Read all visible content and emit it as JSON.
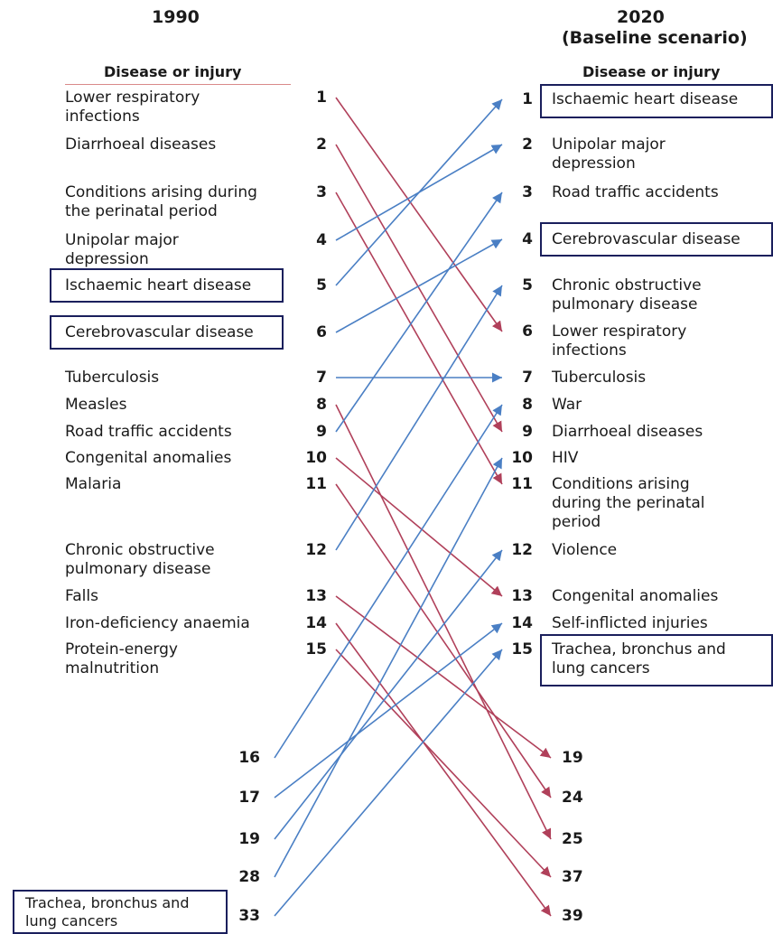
{
  "left": {
    "year": "1990",
    "header": "Disease or injury",
    "items": [
      {
        "rank": "1",
        "label": "Lower respiratory\ninfections"
      },
      {
        "rank": "2",
        "label": "Diarrhoeal diseases"
      },
      {
        "rank": "3",
        "label": "Conditions arising during\nthe perinatal period"
      },
      {
        "rank": "4",
        "label": "Unipolar major\ndepression"
      },
      {
        "rank": "5",
        "label": "Ischaemic heart disease",
        "boxed": true
      },
      {
        "rank": "6",
        "label": "Cerebrovascular disease",
        "boxed": true
      },
      {
        "rank": "7",
        "label": "Tuberculosis"
      },
      {
        "rank": "8",
        "label": "Measles"
      },
      {
        "rank": "9",
        "label": "Road traffic accidents"
      },
      {
        "rank": "10",
        "label": "Congenital anomalies"
      },
      {
        "rank": "11",
        "label": "Malaria"
      },
      {
        "rank": "12",
        "label": "Chronic obstructive\npulmonary disease"
      },
      {
        "rank": "13",
        "label": "Falls"
      },
      {
        "rank": "14",
        "label": "Iron-deficiency anaemia"
      },
      {
        "rank": "15",
        "label": "Protein-energy\nmalnutrition"
      }
    ],
    "lower_ranks": [
      "16",
      "17",
      "19",
      "28",
      "33"
    ],
    "lower_label": "Trachea, bronchus and\nlung cancers"
  },
  "right": {
    "year": "2020",
    "subtitle": "(Baseline scenario)",
    "header": "Disease or injury",
    "items": [
      {
        "rank": "1",
        "label": "Ischaemic heart disease",
        "boxed": true
      },
      {
        "rank": "2",
        "label": "Unipolar major\ndepression"
      },
      {
        "rank": "3",
        "label": "Road traffic accidents"
      },
      {
        "rank": "4",
        "label": "Cerebrovascular disease",
        "boxed": true
      },
      {
        "rank": "5",
        "label": "Chronic obstructive\npulmonary disease"
      },
      {
        "rank": "6",
        "label": "Lower respiratory\ninfections"
      },
      {
        "rank": "7",
        "label": "Tuberculosis"
      },
      {
        "rank": "8",
        "label": "War"
      },
      {
        "rank": "9",
        "label": "Diarrhoeal diseases"
      },
      {
        "rank": "10",
        "label": "HIV"
      },
      {
        "rank": "11",
        "label": "Conditions arising\nduring the perinatal\nperiod"
      },
      {
        "rank": "12",
        "label": "Violence"
      },
      {
        "rank": "13",
        "label": "Congenital anomalies"
      },
      {
        "rank": "14",
        "label": "Self-inflicted injuries"
      },
      {
        "rank": "15",
        "label": "Trachea, bronchus and\nlung cancers",
        "boxed": true
      }
    ],
    "lower_ranks": [
      "19",
      "24",
      "25",
      "37",
      "39"
    ]
  },
  "colors": {
    "rise": "#4a7fc4",
    "fall": "#b0405a",
    "box": "#1a1f5c"
  },
  "transitions": [
    {
      "from": "1",
      "to": "6",
      "trend": "fall"
    },
    {
      "from": "2",
      "to": "9",
      "trend": "fall"
    },
    {
      "from": "3",
      "to": "11",
      "trend": "fall"
    },
    {
      "from": "4",
      "to": "2",
      "trend": "rise"
    },
    {
      "from": "5",
      "to": "1",
      "trend": "rise"
    },
    {
      "from": "6",
      "to": "4",
      "trend": "rise"
    },
    {
      "from": "7",
      "to": "7",
      "trend": "rise"
    },
    {
      "from": "8",
      "to": "25",
      "trend": "fall"
    },
    {
      "from": "9",
      "to": "3",
      "trend": "rise"
    },
    {
      "from": "10",
      "to": "13",
      "trend": "fall"
    },
    {
      "from": "11",
      "to": "24",
      "trend": "fall"
    },
    {
      "from": "12",
      "to": "5",
      "trend": "rise"
    },
    {
      "from": "13",
      "to": "19",
      "trend": "fall"
    },
    {
      "from": "14",
      "to": "39",
      "trend": "fall"
    },
    {
      "from": "15",
      "to": "37",
      "trend": "fall"
    },
    {
      "from": "16",
      "to": "8",
      "trend": "rise"
    },
    {
      "from": "17",
      "to": "14",
      "trend": "rise"
    },
    {
      "from": "19",
      "to": "12",
      "trend": "rise"
    },
    {
      "from": "28",
      "to": "10",
      "trend": "rise"
    },
    {
      "from": "33",
      "to": "15",
      "trend": "rise"
    }
  ]
}
